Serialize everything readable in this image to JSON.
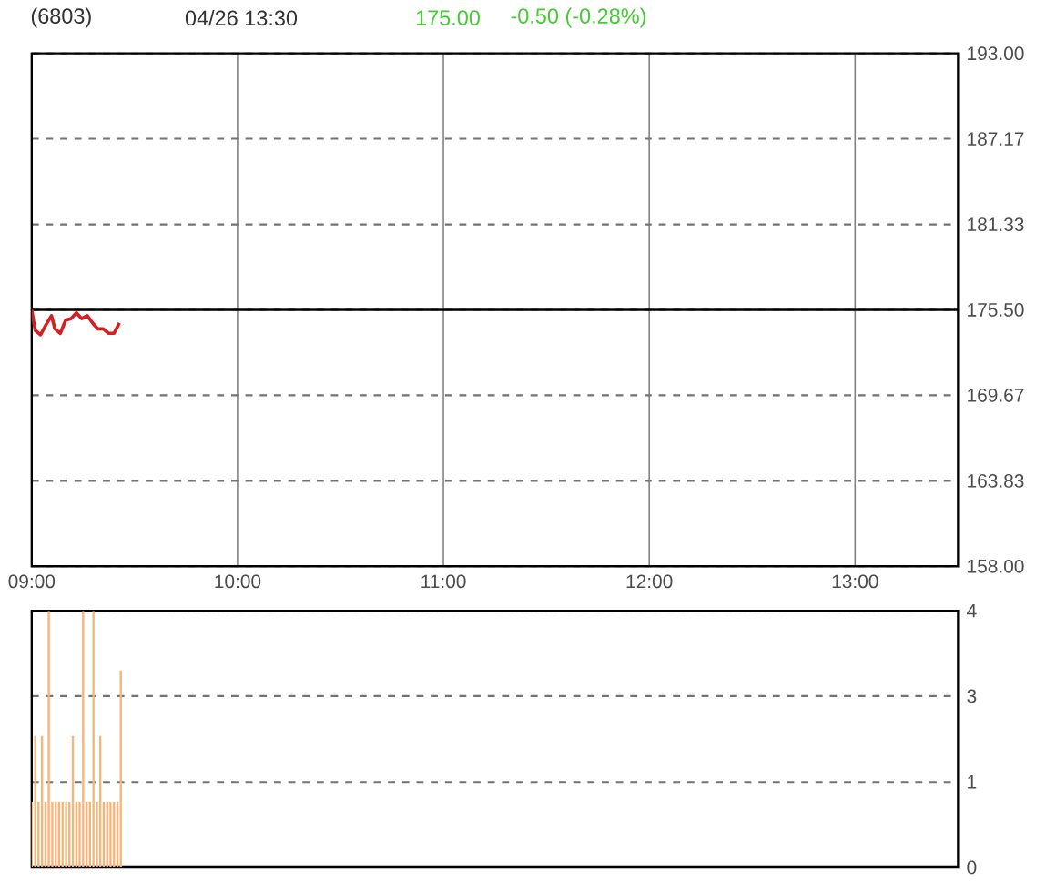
{
  "chart_data": [
    {
      "type": "line",
      "title": "(6803)",
      "subtitle": "04/26 13:30",
      "annotations": [
        "175.00",
        "-0.50 (-0.28%)"
      ],
      "x": [
        9.0,
        9.017,
        9.043,
        9.07,
        9.096,
        9.113,
        9.139,
        9.165,
        9.191,
        9.217,
        9.243,
        9.27,
        9.296,
        9.322,
        9.348,
        9.374,
        9.4,
        9.426
      ],
      "series": [
        {
          "color": "#d42020",
          "values": [
            175.5,
            174.1,
            173.8,
            174.5,
            175.1,
            174.2,
            173.9,
            174.8,
            174.9,
            175.3,
            174.9,
            175.1,
            174.6,
            174.2,
            174.2,
            173.9,
            173.9,
            174.6
          ]
        }
      ],
      "xlim": [
        9,
        13.5
      ],
      "xticks": [
        {
          "value": 9,
          "label": "09:00"
        },
        {
          "value": 10,
          "label": "10:00"
        },
        {
          "value": 11,
          "label": "11:00"
        },
        {
          "value": 12,
          "label": "12:00"
        },
        {
          "value": 13,
          "label": "13:00"
        }
      ],
      "ylim": [
        158,
        193
      ],
      "yticks": [
        {
          "value": 158,
          "label": "158.00"
        },
        163.83,
        169.67,
        {
          "value": 175.5,
          "label": "175.50"
        },
        181.33,
        187.17,
        {
          "value": 193,
          "label": "193.00"
        }
      ],
      "ref_lines": [
        {
          "axis": "y",
          "value": 175.5
        }
      ],
      "grid": true,
      "marker": "none",
      "line_style": "solid"
    },
    {
      "type": "bar",
      "x": [
        9.0,
        9.017,
        9.033,
        9.05,
        9.067,
        9.083,
        9.1,
        9.117,
        9.133,
        9.15,
        9.167,
        9.183,
        9.2,
        9.217,
        9.233,
        9.25,
        9.267,
        9.283,
        9.3,
        9.317,
        9.333,
        9.35,
        9.367,
        9.383,
        9.4,
        9.417,
        9.433
      ],
      "series": [
        {
          "color": "#f5b57a",
          "values": [
            1.1,
            2.2,
            1.1,
            2.2,
            1.1,
            4.3,
            1.1,
            1.1,
            1.1,
            1.1,
            1.1,
            1.1,
            2.2,
            1.1,
            1.1,
            4.3,
            1.1,
            1.1,
            4.3,
            1.1,
            2.2,
            1.1,
            1.1,
            1.1,
            1.1,
            1.1,
            3.3
          ]
        }
      ],
      "xlim": [
        9,
        13.5
      ],
      "ylim": [
        0,
        4.3
      ],
      "yticks": [
        0,
        {
          "value": 1.43,
          "label": "1"
        },
        {
          "value": 2.87,
          "label": "3"
        },
        {
          "value": 4.3,
          "label": "4"
        }
      ],
      "tick_labels": "y",
      "grid": "y"
    }
  ]
}
